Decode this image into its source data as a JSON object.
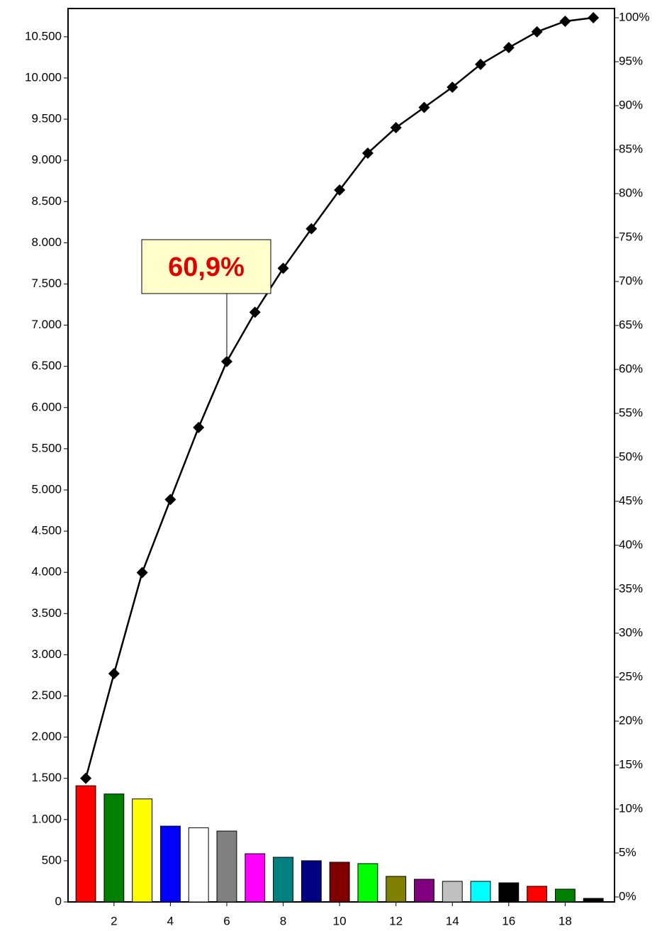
{
  "chart_data": {
    "type": "bar",
    "x": [
      1,
      2,
      3,
      4,
      5,
      6,
      7,
      8,
      9,
      10,
      11,
      12,
      13,
      14,
      15,
      16,
      17,
      18,
      19
    ],
    "xlim": [
      0.37,
      19.75
    ],
    "xticks": [
      2,
      4,
      6,
      8,
      10,
      12,
      14,
      16,
      18
    ],
    "ylim": [
      0,
      10843
    ],
    "yticks": [
      0,
      500,
      {
        "value": 1000,
        "label": "1.000"
      },
      {
        "value": 1500,
        "label": "1.500"
      },
      {
        "value": 2000,
        "label": "2.000"
      },
      {
        "value": 2500,
        "label": "2.500"
      },
      {
        "value": 3000,
        "label": "3.000"
      },
      {
        "value": 3500,
        "label": "3.500"
      },
      {
        "value": 4000,
        "label": "4.000"
      },
      {
        "value": 4500,
        "label": "4.500"
      },
      {
        "value": 5000,
        "label": "5.000"
      },
      {
        "value": 5500,
        "label": "5.500"
      },
      {
        "value": 6000,
        "label": "6.000"
      },
      {
        "value": 6500,
        "label": "6.500"
      },
      {
        "value": 7000,
        "label": "7.000"
      },
      {
        "value": 7500,
        "label": "7.500"
      },
      {
        "value": 8000,
        "label": "8.000"
      },
      {
        "value": 8500,
        "label": "8.500"
      },
      {
        "value": 9000,
        "label": "9.000"
      },
      {
        "value": 9500,
        "label": "9.500"
      },
      {
        "value": 10000,
        "label": "10.000"
      },
      {
        "value": 10500,
        "label": "10.500"
      }
    ],
    "y2lim": [
      -0.565,
      101.05
    ],
    "y2ticks": [
      {
        "value": 0,
        "label": "0%"
      },
      {
        "value": 5,
        "label": "5%"
      },
      {
        "value": 10,
        "label": "10%"
      },
      {
        "value": 15,
        "label": "15%"
      },
      {
        "value": 20,
        "label": "20%"
      },
      {
        "value": 25,
        "label": "25%"
      },
      {
        "value": 30,
        "label": "30%"
      },
      {
        "value": 35,
        "label": "35%"
      },
      {
        "value": 40,
        "label": "40%"
      },
      {
        "value": 45,
        "label": "45%"
      },
      {
        "value": 50,
        "label": "50%"
      },
      {
        "value": 55,
        "label": "55%"
      },
      {
        "value": 60,
        "label": "60%"
      },
      {
        "value": 65,
        "label": "65%"
      },
      {
        "value": 70,
        "label": "70%"
      },
      {
        "value": 75,
        "label": "75%"
      },
      {
        "value": 80,
        "label": "80%"
      },
      {
        "value": 85,
        "label": "85%"
      },
      {
        "value": 90,
        "label": "90%"
      },
      {
        "value": 95,
        "label": "95%"
      },
      {
        "value": 100,
        "label": "100%"
      }
    ],
    "series": [
      {
        "type": "bar",
        "colors": [
          "#ff0000",
          "#008000",
          "#ffff00",
          "#0000ff",
          "#ffffff",
          "#808080",
          "#ff00ff",
          "#008080",
          "#000080",
          "#800000",
          "#00ff00",
          "#808000",
          "#800080",
          "#c0c0c0",
          "#00ffff",
          "#000000",
          "#ff0000",
          "#008000",
          "#000000"
        ],
        "values": [
          1410,
          1310,
          1250,
          920,
          900,
          860,
          585,
          542,
          500,
          482,
          465,
          310,
          275,
          250,
          250,
          232,
          190,
          155,
          43
        ]
      },
      {
        "type": "line",
        "axis": "y2",
        "color": "#000000",
        "values": [
          13.5,
          25.4,
          36.9,
          45.2,
          53.4,
          60.9,
          66.5,
          71.5,
          76.0,
          80.4,
          84.6,
          87.5,
          89.8,
          92.1,
          94.7,
          96.6,
          98.4,
          99.6,
          100
        ]
      }
    ],
    "annotation": "60,9%"
  }
}
